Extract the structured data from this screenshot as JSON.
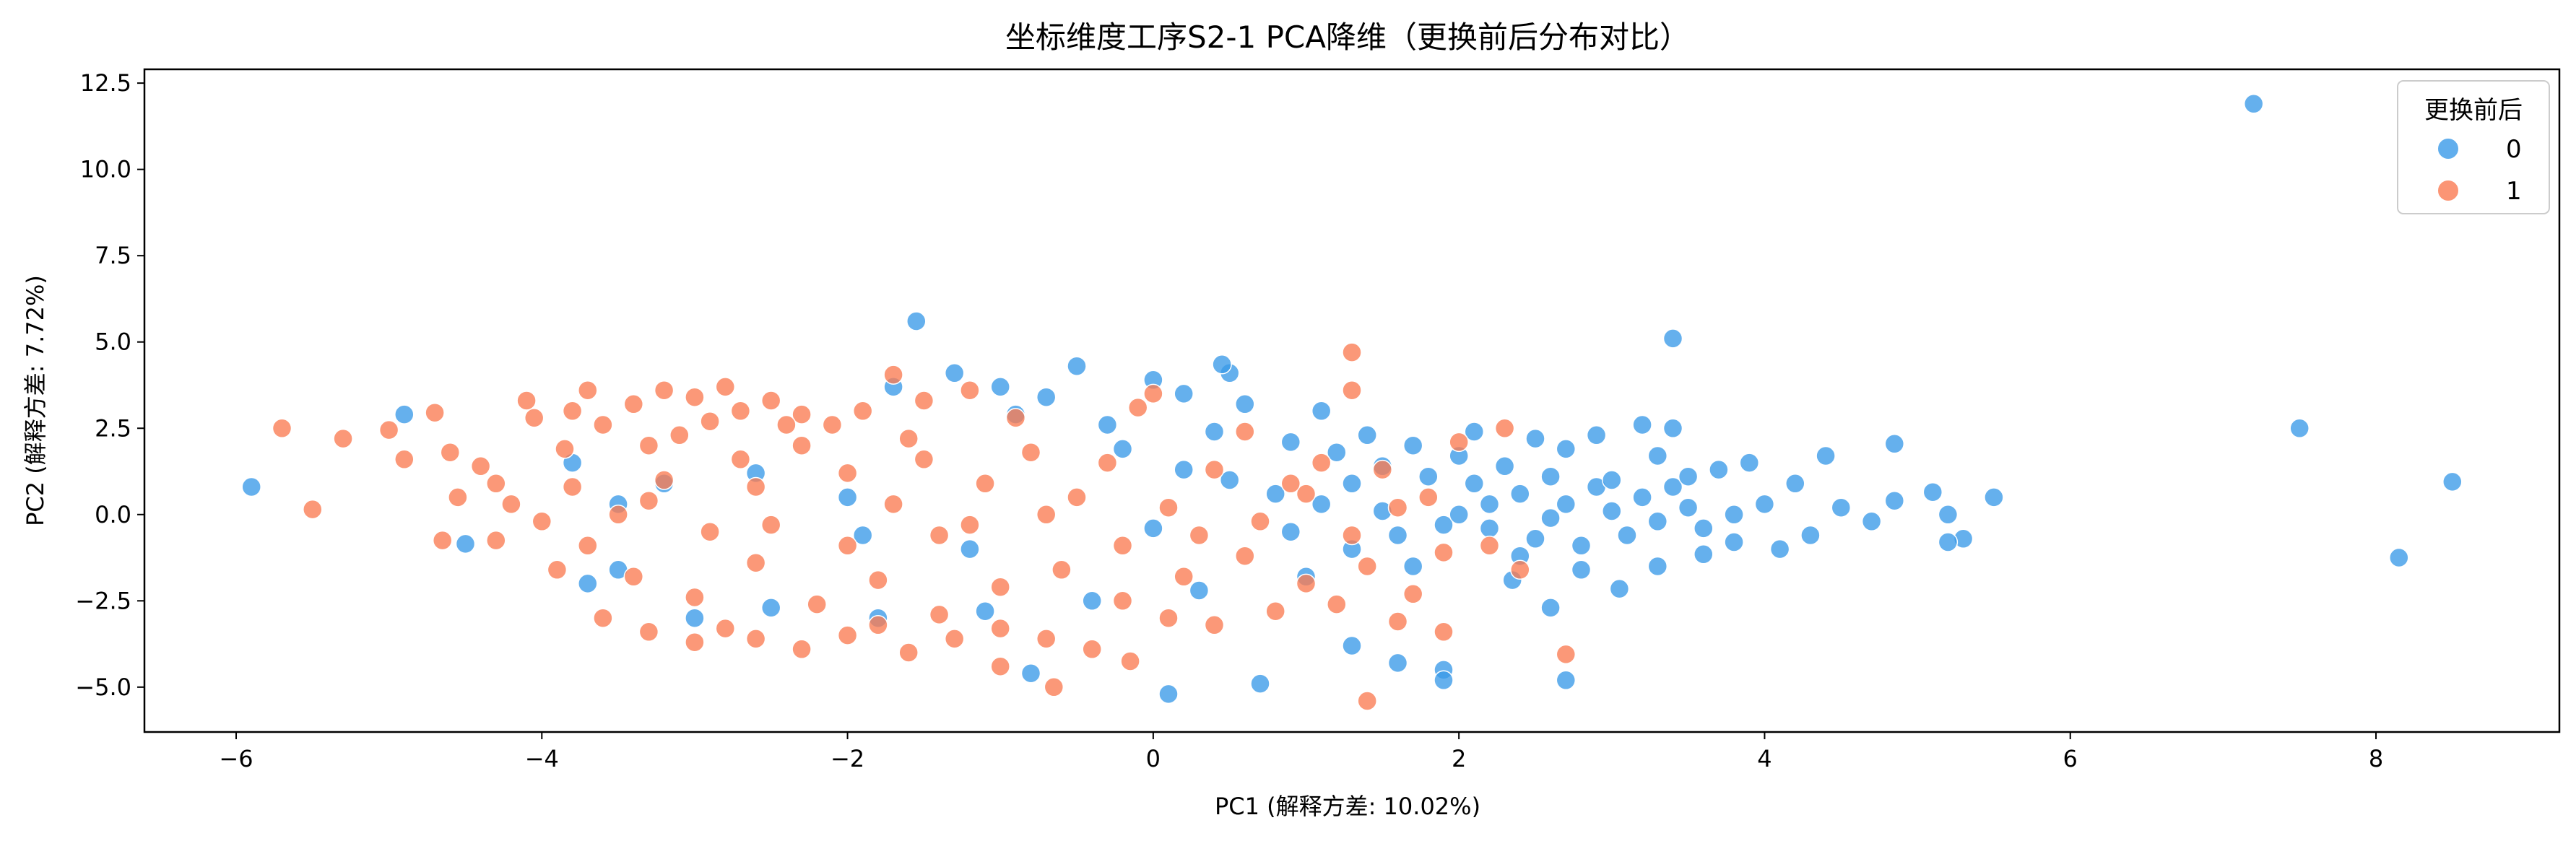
{
  "chart_data": {
    "type": "scatter",
    "title": "坐标维度工序S2-1 PCA降维（更换前后分布对比）",
    "xlabel": "PC1 (解释方差: 10.02%)",
    "ylabel": "PC2 (解释方差: 7.72%)",
    "xlim": [
      -6.6,
      9.2
    ],
    "ylim": [
      -6.3,
      12.9
    ],
    "xticks": [
      -6,
      -4,
      -2,
      0,
      2,
      4,
      6,
      8
    ],
    "xtick_labels": [
      "−6",
      "−4",
      "−2",
      "0",
      "2",
      "4",
      "6",
      "8"
    ],
    "yticks": [
      -5.0,
      -2.5,
      0.0,
      2.5,
      5.0,
      7.5,
      10.0,
      12.5
    ],
    "ytick_labels": [
      "−5.0",
      "−2.5",
      "0.0",
      "2.5",
      "5.0",
      "7.5",
      "10.0",
      "12.5"
    ],
    "grid": false,
    "legend": {
      "title": "更换前后",
      "placement": "top-right"
    },
    "series": [
      {
        "name": "0",
        "color": "#3a9ae8",
        "points": [
          [
            7.2,
            11.9
          ],
          [
            8.5,
            0.95
          ],
          [
            7.5,
            2.5
          ],
          [
            8.15,
            -1.25
          ],
          [
            -5.9,
            0.8
          ],
          [
            -4.9,
            2.9
          ],
          [
            -4.5,
            -0.85
          ],
          [
            -3.7,
            -2.0
          ],
          [
            -3.5,
            -1.6
          ],
          [
            -1.55,
            5.6
          ],
          [
            3.4,
            5.1
          ],
          [
            5.5,
            0.5
          ],
          [
            5.3,
            -0.7
          ],
          [
            5.2,
            -0.8
          ],
          [
            5.2,
            0.0
          ],
          [
            5.1,
            0.65
          ],
          [
            4.85,
            2.05
          ],
          [
            4.85,
            0.4
          ],
          [
            4.7,
            -0.2
          ],
          [
            4.4,
            1.7
          ],
          [
            4.3,
            -0.6
          ],
          [
            4.1,
            -1.0
          ],
          [
            4.0,
            0.3
          ],
          [
            3.9,
            1.5
          ],
          [
            3.7,
            1.3
          ],
          [
            2.7,
            -4.8
          ],
          [
            1.9,
            -4.5
          ],
          [
            0.1,
            -5.2
          ],
          [
            -0.8,
            -4.6
          ],
          [
            0.7,
            -4.9
          ],
          [
            1.3,
            -3.8
          ],
          [
            1.6,
            -4.3
          ],
          [
            1.9,
            -4.8
          ],
          [
            3.05,
            -2.15
          ],
          [
            2.6,
            -2.7
          ],
          [
            2.35,
            -1.9
          ],
          [
            3.3,
            -1.5
          ],
          [
            3.6,
            -1.15
          ],
          [
            2.9,
            2.3
          ],
          [
            3.2,
            2.6
          ],
          [
            3.4,
            2.5
          ],
          [
            2.5,
            2.2
          ],
          [
            -0.5,
            4.3
          ],
          [
            0.5,
            4.1
          ],
          [
            0.45,
            4.35
          ],
          [
            -1.3,
            4.1
          ],
          [
            0.0,
            3.9
          ],
          [
            -1.0,
            3.7
          ],
          [
            -0.3,
            2.6
          ],
          [
            0.4,
            2.4
          ],
          [
            0.9,
            2.1
          ],
          [
            1.2,
            1.8
          ],
          [
            1.5,
            1.4
          ],
          [
            1.8,
            1.1
          ],
          [
            2.1,
            0.9
          ],
          [
            2.4,
            0.6
          ],
          [
            2.7,
            0.3
          ],
          [
            3.0,
            0.1
          ],
          [
            3.3,
            -0.2
          ],
          [
            2.2,
            -0.4
          ],
          [
            2.5,
            -0.7
          ],
          [
            2.8,
            -0.9
          ],
          [
            1.6,
            -0.6
          ],
          [
            1.9,
            -0.3
          ],
          [
            1.1,
            0.3
          ],
          [
            0.8,
            0.6
          ],
          [
            0.5,
            1.0
          ],
          [
            0.2,
            1.3
          ],
          [
            1.4,
            2.3
          ],
          [
            1.7,
            2.0
          ],
          [
            2.0,
            1.7
          ],
          [
            2.3,
            1.4
          ],
          [
            2.6,
            1.1
          ],
          [
            2.9,
            0.8
          ],
          [
            3.2,
            0.5
          ],
          [
            3.5,
            0.2
          ],
          [
            3.8,
            0.0
          ],
          [
            3.1,
            -0.6
          ],
          [
            2.4,
            -1.2
          ],
          [
            1.7,
            -1.5
          ],
          [
            1.0,
            -1.8
          ],
          [
            0.3,
            -2.2
          ],
          [
            -0.4,
            -2.5
          ],
          [
            -1.1,
            -2.8
          ],
          [
            -1.8,
            -3.0
          ],
          [
            -2.5,
            -2.7
          ],
          [
            -3.0,
            -3.0
          ],
          [
            -2.0,
            0.5
          ],
          [
            -2.6,
            1.2
          ],
          [
            -3.2,
            0.9
          ],
          [
            -3.8,
            1.5
          ],
          [
            -3.5,
            0.3
          ],
          [
            -0.9,
            2.9
          ],
          [
            0.6,
            3.2
          ],
          [
            1.1,
            3.0
          ],
          [
            -0.2,
            1.9
          ],
          [
            2.0,
            0.0
          ],
          [
            2.2,
            0.3
          ],
          [
            2.6,
            -0.1
          ],
          [
            3.0,
            1.0
          ],
          [
            3.4,
            0.8
          ],
          [
            3.6,
            -0.4
          ],
          [
            1.5,
            0.1
          ],
          [
            1.3,
            -1.0
          ],
          [
            0.9,
            -0.5
          ],
          [
            2.8,
            -1.6
          ],
          [
            3.3,
            1.7
          ],
          [
            2.1,
            2.4
          ],
          [
            1.3,
            0.9
          ],
          [
            2.7,
            1.9
          ],
          [
            3.5,
            1.1
          ],
          [
            3.8,
            -0.8
          ],
          [
            4.5,
            0.2
          ],
          [
            4.2,
            0.9
          ],
          [
            -1.7,
            3.7
          ],
          [
            -0.7,
            3.4
          ],
          [
            0.2,
            3.5
          ],
          [
            -1.9,
            -0.6
          ],
          [
            -1.2,
            -1.0
          ],
          [
            0.0,
            -0.4
          ]
        ]
      },
      {
        "name": "1",
        "color": "#fa7b52",
        "points": [
          [
            -5.7,
            2.5
          ],
          [
            -5.5,
            0.15
          ],
          [
            -5.3,
            2.2
          ],
          [
            -5.0,
            2.45
          ],
          [
            -4.9,
            1.6
          ],
          [
            -4.7,
            2.95
          ],
          [
            -4.65,
            -0.75
          ],
          [
            -4.6,
            1.8
          ],
          [
            -4.55,
            0.5
          ],
          [
            -4.4,
            1.4
          ],
          [
            -4.3,
            -0.75
          ],
          [
            -4.2,
            0.3
          ],
          [
            -4.1,
            3.3
          ],
          [
            -4.05,
            2.8
          ],
          [
            -3.9,
            -1.6
          ],
          [
            -3.85,
            1.9
          ],
          [
            -3.8,
            3.0
          ],
          [
            -3.7,
            3.6
          ],
          [
            -3.6,
            2.6
          ],
          [
            -3.4,
            3.2
          ],
          [
            -3.3,
            2.0
          ],
          [
            -3.2,
            3.6
          ],
          [
            -3.0,
            3.4
          ],
          [
            -2.9,
            2.7
          ],
          [
            -2.8,
            3.7
          ],
          [
            -2.7,
            3.0
          ],
          [
            -2.5,
            3.3
          ],
          [
            -2.3,
            2.9
          ],
          [
            -2.1,
            2.6
          ],
          [
            -1.9,
            3.0
          ],
          [
            -1.7,
            4.05
          ],
          [
            -1.5,
            3.3
          ],
          [
            -1.2,
            3.6
          ],
          [
            -3.6,
            -3.0
          ],
          [
            -3.3,
            -3.4
          ],
          [
            -3.0,
            -3.7
          ],
          [
            -2.8,
            -3.3
          ],
          [
            -2.6,
            -3.6
          ],
          [
            -2.3,
            -3.9
          ],
          [
            -2.0,
            -3.5
          ],
          [
            -1.8,
            -3.2
          ],
          [
            -1.6,
            -4.0
          ],
          [
            -1.3,
            -3.6
          ],
          [
            -1.0,
            -3.3
          ],
          [
            -0.7,
            -3.6
          ],
          [
            -0.4,
            -3.9
          ],
          [
            -0.15,
            -4.25
          ],
          [
            -0.65,
            -5.0
          ],
          [
            -1.0,
            -4.4
          ],
          [
            1.3,
            4.7
          ],
          [
            1.3,
            3.6
          ],
          [
            1.4,
            -5.4
          ],
          [
            2.7,
            -4.05
          ],
          [
            1.9,
            -3.4
          ],
          [
            1.6,
            -3.1
          ],
          [
            1.2,
            -2.6
          ],
          [
            0.8,
            -2.8
          ],
          [
            0.4,
            -3.2
          ],
          [
            0.1,
            -3.0
          ],
          [
            -3.5,
            0.0
          ],
          [
            -3.2,
            1.0
          ],
          [
            -2.9,
            -0.5
          ],
          [
            -2.6,
            0.8
          ],
          [
            -2.3,
            2.0
          ],
          [
            -2.0,
            1.2
          ],
          [
            -1.7,
            0.3
          ],
          [
            -1.4,
            -0.6
          ],
          [
            -1.1,
            0.9
          ],
          [
            -0.8,
            1.8
          ],
          [
            -0.5,
            0.5
          ],
          [
            -0.2,
            -0.9
          ],
          [
            0.1,
            0.2
          ],
          [
            0.4,
            1.3
          ],
          [
            0.7,
            -0.2
          ],
          [
            1.0,
            0.6
          ],
          [
            1.3,
            -0.6
          ],
          [
            1.6,
            0.2
          ],
          [
            1.9,
            -1.1
          ],
          [
            -3.4,
            -1.8
          ],
          [
            -3.0,
            -2.4
          ],
          [
            -2.6,
            -1.4
          ],
          [
            -2.2,
            -2.6
          ],
          [
            -1.8,
            -1.9
          ],
          [
            -1.4,
            -2.9
          ],
          [
            -1.0,
            -2.1
          ],
          [
            -0.6,
            -1.6
          ],
          [
            -0.2,
            -2.5
          ],
          [
            0.2,
            -1.8
          ],
          [
            0.6,
            -1.2
          ],
          [
            1.0,
            -2.0
          ],
          [
            1.4,
            -1.5
          ],
          [
            1.7,
            -2.3
          ],
          [
            -3.8,
            0.8
          ],
          [
            -3.1,
            2.3
          ],
          [
            -2.4,
            2.6
          ],
          [
            -1.6,
            2.2
          ],
          [
            -0.9,
            2.8
          ],
          [
            -0.1,
            3.1
          ],
          [
            0.6,
            2.4
          ],
          [
            1.1,
            1.5
          ],
          [
            -4.0,
            -0.2
          ],
          [
            -3.7,
            -0.9
          ],
          [
            -2.5,
            -0.3
          ],
          [
            -1.5,
            1.6
          ],
          [
            -0.3,
            1.5
          ],
          [
            0.3,
            -0.6
          ],
          [
            0.9,
            0.9
          ],
          [
            1.5,
            1.3
          ],
          [
            2.3,
            2.5
          ],
          [
            2.0,
            2.1
          ],
          [
            1.8,
            0.5
          ],
          [
            2.2,
            -0.9
          ],
          [
            2.4,
            -1.6
          ],
          [
            0.0,
            3.5
          ],
          [
            -0.7,
            0.0
          ],
          [
            -1.2,
            -0.3
          ],
          [
            -2.0,
            -0.9
          ],
          [
            -2.7,
            1.6
          ],
          [
            -3.3,
            0.4
          ],
          [
            -4.3,
            0.9
          ]
        ]
      }
    ]
  }
}
